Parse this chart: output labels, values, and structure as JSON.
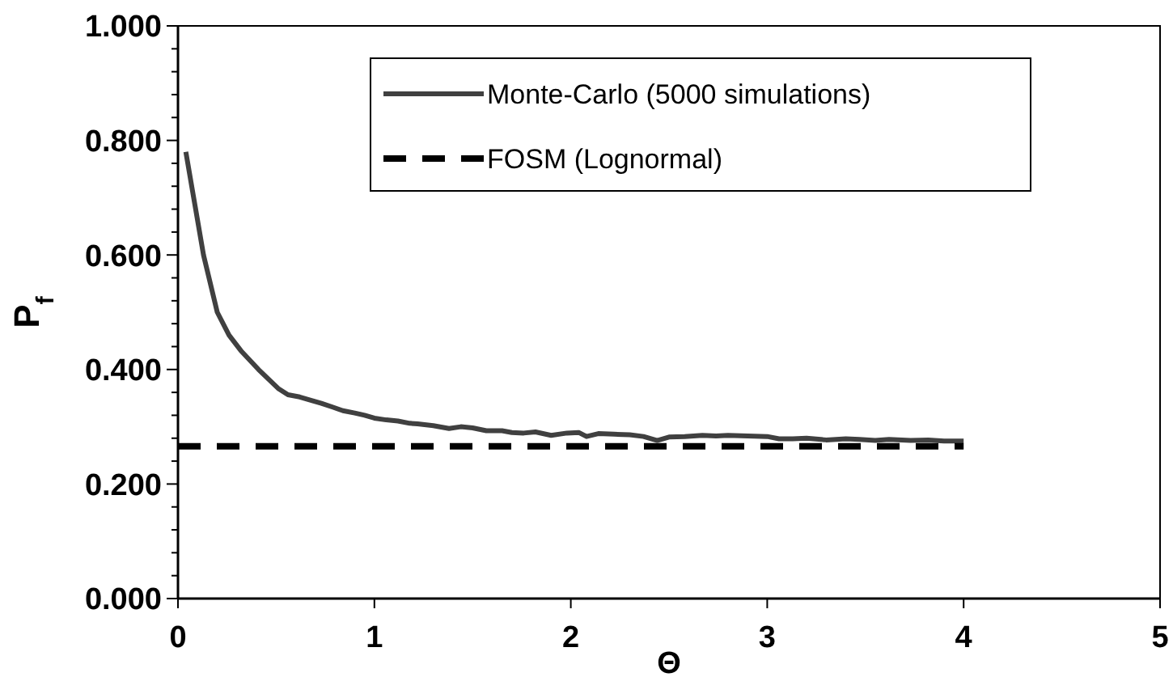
{
  "chart_data": {
    "type": "line",
    "xlabel": "Θ",
    "ylabel": "P$_{f}$",
    "xlim": [
      0,
      5
    ],
    "xticks": [
      0,
      1,
      2,
      3,
      4,
      5
    ],
    "ylim": [
      0,
      1
    ],
    "yticks": [
      {
        "value": 0,
        "label": "0.000"
      },
      {
        "value": 0.04,
        "label": null
      },
      {
        "value": 0.08,
        "label": null
      },
      {
        "value": 0.12,
        "label": null
      },
      {
        "value": 0.16,
        "label": null
      },
      {
        "value": 0.2,
        "label": "0.200"
      },
      {
        "value": 0.24,
        "label": null
      },
      {
        "value": 0.28,
        "label": null
      },
      {
        "value": 0.32,
        "label": null
      },
      {
        "value": 0.36,
        "label": null
      },
      {
        "value": 0.4,
        "label": "0.400"
      },
      {
        "value": 0.44,
        "label": null
      },
      {
        "value": 0.48,
        "label": null
      },
      {
        "value": 0.52,
        "label": null
      },
      {
        "value": 0.56,
        "label": null
      },
      {
        "value": 0.6,
        "label": "0.600"
      },
      {
        "value": 0.64,
        "label": null
      },
      {
        "value": 0.68,
        "label": null
      },
      {
        "value": 0.72,
        "label": null
      },
      {
        "value": 0.76,
        "label": null
      },
      {
        "value": 0.8,
        "label": "0.800"
      },
      {
        "value": 0.84,
        "label": null
      },
      {
        "value": 0.88,
        "label": null
      },
      {
        "value": 0.92,
        "label": null
      },
      {
        "value": 0.96,
        "label": null
      },
      {
        "value": 1,
        "label": "1.000"
      }
    ],
    "grid": false,
    "legend": "top right",
    "marker": "none",
    "series": [
      {
        "name": "Monte-Carlo (5000 simulations)",
        "color": "#404040",
        "line_style": "solid",
        "x": [
          0.04,
          0.08,
          0.13,
          0.2,
          0.26,
          0.32,
          0.41,
          0.51,
          0.56,
          0.62,
          0.68,
          0.73,
          0.79,
          0.84,
          0.9,
          0.95,
          1.0,
          1.06,
          1.12,
          1.18,
          1.22,
          1.3,
          1.38,
          1.44,
          1.5,
          1.57,
          1.65,
          1.7,
          1.76,
          1.82,
          1.9,
          1.98,
          2.04,
          2.08,
          2.14,
          2.22,
          2.3,
          2.37,
          2.44,
          2.5,
          2.58,
          2.67,
          2.74,
          2.8,
          2.9,
          3.0,
          3.06,
          3.13,
          3.2,
          3.3,
          3.4,
          3.47,
          3.55,
          3.62,
          3.73,
          3.82,
          3.9,
          4.0
        ],
        "values": [
          0.78,
          0.7,
          0.6,
          0.5,
          0.46,
          0.433,
          0.4,
          0.367,
          0.356,
          0.352,
          0.346,
          0.341,
          0.334,
          0.328,
          0.324,
          0.32,
          0.315,
          0.312,
          0.31,
          0.306,
          0.305,
          0.302,
          0.297,
          0.3,
          0.298,
          0.293,
          0.293,
          0.29,
          0.289,
          0.291,
          0.285,
          0.289,
          0.29,
          0.283,
          0.288,
          0.287,
          0.286,
          0.283,
          0.276,
          0.282,
          0.283,
          0.285,
          0.284,
          0.285,
          0.284,
          0.283,
          0.279,
          0.279,
          0.28,
          0.277,
          0.279,
          0.278,
          0.276,
          0.278,
          0.276,
          0.277,
          0.275,
          0.275
        ]
      },
      {
        "name": "FOSM (Lognormal)",
        "color": "#000000",
        "line_style": "dashed",
        "x": [
          0,
          4
        ],
        "values": [
          0.266,
          0.266
        ]
      }
    ]
  }
}
